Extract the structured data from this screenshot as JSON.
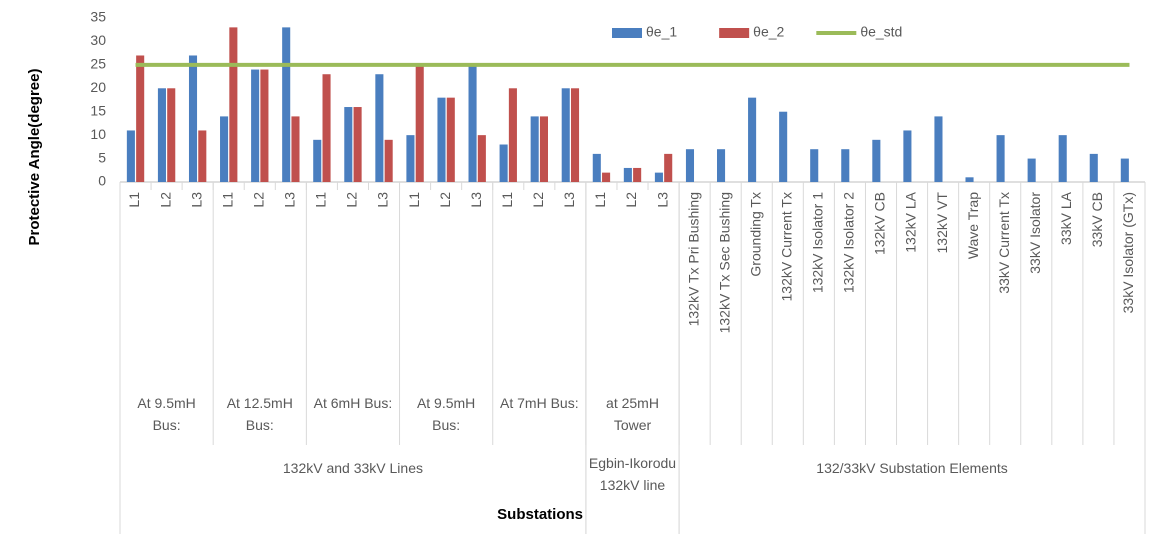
{
  "chart_data": {
    "type": "bar",
    "ylabel": "Protective Angle(degree)",
    "xlabel": "Substations",
    "ylim": [
      0,
      35
    ],
    "yticks": [
      0,
      5,
      10,
      15,
      20,
      25,
      30,
      35
    ],
    "grid": false,
    "legend": "top",
    "category_groups": [
      {
        "label": "132kV and 33kV Lines",
        "groups": [
          {
            "label": "At 9.5mH Bus:",
            "categories": [
              "L1",
              "L2",
              "L3"
            ]
          },
          {
            "label": "At 12.5mH Bus:",
            "categories": [
              "L1",
              "L2",
              "L3"
            ]
          },
          {
            "label": "At 6mH Bus:",
            "categories": [
              "L1",
              "L2",
              "L3"
            ]
          },
          {
            "label": "At 9.5mH Bus:",
            "categories": [
              "L1",
              "L2",
              "L3"
            ]
          },
          {
            "label": "At 7mH Bus:",
            "categories": [
              "L1",
              "L2",
              "L3"
            ]
          }
        ]
      },
      {
        "label": "Egbin-Ikorodu 132kV line",
        "groups": [
          {
            "label": "at 25mH Tower",
            "categories": [
              "L1",
              "L2",
              "L3"
            ]
          }
        ]
      },
      {
        "label": "132/33kV Substation Elements",
        "categories": [
          "132kV Tx Pri Bushing",
          "132kV Tx Sec Bushing",
          "Grounding Tx",
          "132kV Current Tx",
          "132kV Isolator 1",
          "132kV Isolator 2",
          "132kV CB",
          "132kV LA",
          "132kV VT",
          "Wave Trap",
          "33kV Current Tx",
          "33kV Isolator",
          "33kV LA",
          "33kV CB",
          "33kV Isolator (GTx)"
        ]
      }
    ],
    "series": [
      {
        "name": "θe_1",
        "color": "#4a7ebf",
        "kind": "bar",
        "values": [
          11,
          20,
          27,
          14,
          24,
          33,
          9,
          16,
          23,
          10,
          18,
          25,
          8,
          14,
          20,
          6,
          3,
          2,
          7,
          7,
          18,
          15,
          7,
          7,
          9,
          11,
          14,
          1,
          10,
          5,
          10,
          6,
          5
        ]
      },
      {
        "name": "θe_2",
        "color": "#c0504d",
        "kind": "bar",
        "values": [
          27,
          20,
          11,
          33,
          24,
          14,
          23,
          16,
          9,
          25,
          18,
          10,
          20,
          14,
          20,
          2,
          3,
          6,
          null,
          null,
          null,
          null,
          null,
          null,
          null,
          null,
          null,
          null,
          null,
          null,
          null,
          null,
          null
        ]
      },
      {
        "name": "θe_std",
        "color": "#9bbb59",
        "kind": "line",
        "values": [
          25,
          25,
          25,
          25,
          25,
          25,
          25,
          25,
          25,
          25,
          25,
          25,
          25,
          25,
          25,
          25,
          25,
          25,
          25,
          25,
          25,
          25,
          25,
          25,
          25,
          25,
          25,
          25,
          25,
          25,
          25,
          25,
          25
        ]
      }
    ]
  }
}
